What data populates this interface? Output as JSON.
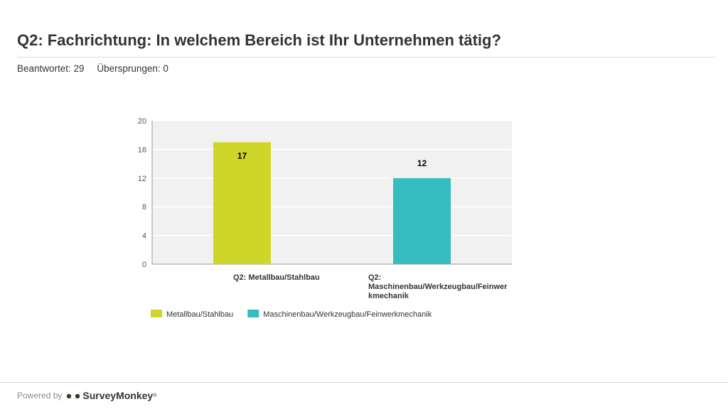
{
  "question": {
    "title": "Q2: Fachrichtung: In welchem Bereich ist Ihr Unternehmen tätig?",
    "answered": "Beantwortet: 29",
    "skipped": "Übersprungen: 0"
  },
  "chart_data": {
    "type": "bar",
    "title": "",
    "xlabel": "",
    "ylabel": "",
    "categories": [
      "Q2: Metallbau/Stahlbau",
      "Q2:\nMaschinenbau/Werkzeugbau/Feinwer\nkmechanik"
    ],
    "values": [
      17,
      12
    ],
    "colors": [
      "#cfd62a",
      "#35bdbf"
    ],
    "ylim": [
      0,
      20
    ],
    "yticks": [
      0,
      4,
      8,
      12,
      16,
      20
    ],
    "grid": true,
    "legend": {
      "position": "bottom-left",
      "entries": [
        {
          "label": "Metallbau/Stahlbau",
          "color": "#cfd62a"
        },
        {
          "label": "Maschinenbau/Werkzeugbau/Feinwerkmechanik",
          "color": "#35bdbf"
        }
      ]
    }
  },
  "footer": {
    "powered_by": "Powered by",
    "brand": "SurveyMonkey",
    "trademark": "®",
    "logo_icon": "surveymonkey-logo-icon"
  }
}
